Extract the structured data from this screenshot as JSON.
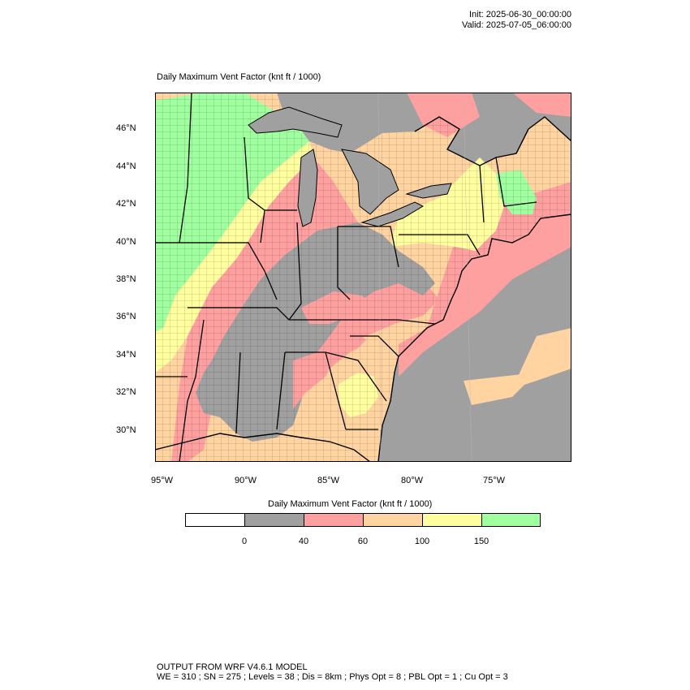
{
  "header": {
    "init": "Init: 2025-06-30_00:00:00",
    "valid": "Valid: 2025-07-05_06:00:00"
  },
  "map": {
    "title": "Daily Maximum Vent Factor   (knt ft / 1000)",
    "lat_labels": [
      "46°N",
      "44°N",
      "42°N",
      "40°N",
      "38°N",
      "36°N",
      "34°N",
      "32°N",
      "30°N"
    ],
    "lon_labels": [
      "95°W",
      "90°W",
      "85°W",
      "80°W",
      "75°W"
    ],
    "colors": {
      "lt0": "#ffffff",
      "c0_40": "#a0a0a0",
      "c40_60": "#ffa0a0",
      "c60_100": "#ffd4a0",
      "c100_150": "#ffff9f",
      "c150p": "#a0ff9f",
      "land_state_lines": "#000000"
    }
  },
  "colorbar": {
    "title": "Daily Maximum Vent Factor  (knt ft / 1000)",
    "labels": [
      "0",
      "40",
      "60",
      "100",
      "150"
    ],
    "colors": [
      "#ffffff",
      "#a0a0a0",
      "#ffa0a0",
      "#ffd4a0",
      "#ffff9f",
      "#a0ff9f"
    ]
  },
  "footer": {
    "line1": "OUTPUT FROM WRF V4.6.1 MODEL",
    "line2": "WE = 310 ; SN = 275 ; Levels = 38 ; Dis = 8km ; Phys Opt = 8 ; PBL Opt = 1 ; Cu Opt = 3"
  }
}
